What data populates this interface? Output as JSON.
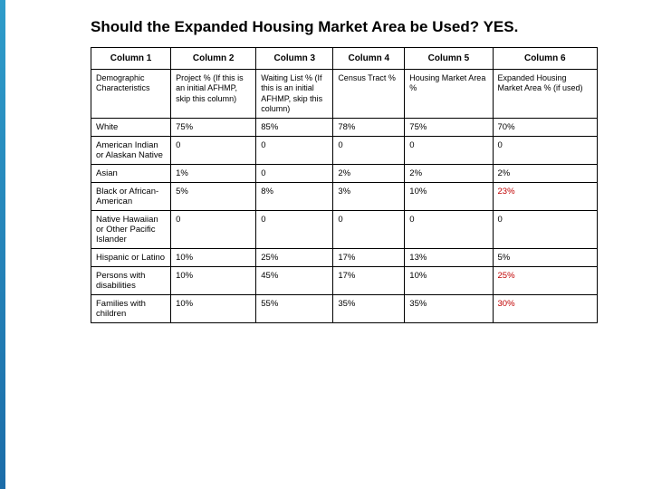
{
  "title": "Should the Expanded Housing Market Area be Used?  YES.",
  "table": {
    "type": "table",
    "border_color": "#000000",
    "background_color": "#ffffff",
    "highlight_color": "#c00000",
    "accent_bar_colors": [
      "#2e9cca",
      "#1b6ca8"
    ],
    "header_fontsize": 10,
    "cell_fontsize": 9.5,
    "desc_fontsize": 9,
    "column_widths_pct": [
      14.5,
      15.5,
      14,
      13,
      16,
      19
    ],
    "columns": [
      "Column 1",
      "Column 2",
      "Column 3",
      "Column 4",
      "Column 5",
      "Column 6"
    ],
    "descriptions": [
      "Demographic Characteristics",
      "Project % (If this is an initial AFHMP, skip this column)",
      "Waiting List % (If this is an initial AFHMP, skip this column)",
      "Census Tract %",
      "Housing Market Area %",
      "Expanded Housing Market Area % (if used)"
    ],
    "rows": [
      {
        "label": "White",
        "c2": "75%",
        "c3": "85%",
        "c4": "78%",
        "c5": "75%",
        "c6": "70%",
        "hl6": false
      },
      {
        "label": "American Indian or Alaskan Native",
        "c2": "0",
        "c3": "0",
        "c4": "0",
        "c5": "0",
        "c6": "0",
        "hl6": false
      },
      {
        "label": "Asian",
        "c2": "1%",
        "c3": "0",
        "c4": "2%",
        "c5": "2%",
        "c6": "2%",
        "hl6": false
      },
      {
        "label": "Black or African-American",
        "c2": "5%",
        "c3": "8%",
        "c4": "3%",
        "c5": "10%",
        "c6": "23%",
        "hl6": true
      },
      {
        "label": "Native Hawaiian or Other Pacific Islander",
        "c2": "0",
        "c3": "0",
        "c4": "0",
        "c5": "0",
        "c6": "0",
        "hl6": false
      },
      {
        "label": "Hispanic or Latino",
        "c2": "10%",
        "c3": "25%",
        "c4": "17%",
        "c5": "13%",
        "c6": "5%",
        "hl6": false
      },
      {
        "label": "Persons with disabilities",
        "c2": "10%",
        "c3": "45%",
        "c4": "17%",
        "c5": "10%",
        "c6": "25%",
        "hl6": true
      },
      {
        "label": "Families with children",
        "c2": "10%",
        "c3": "55%",
        "c4": "35%",
        "c5": "35%",
        "c6": "30%",
        "hl6": true
      }
    ]
  }
}
